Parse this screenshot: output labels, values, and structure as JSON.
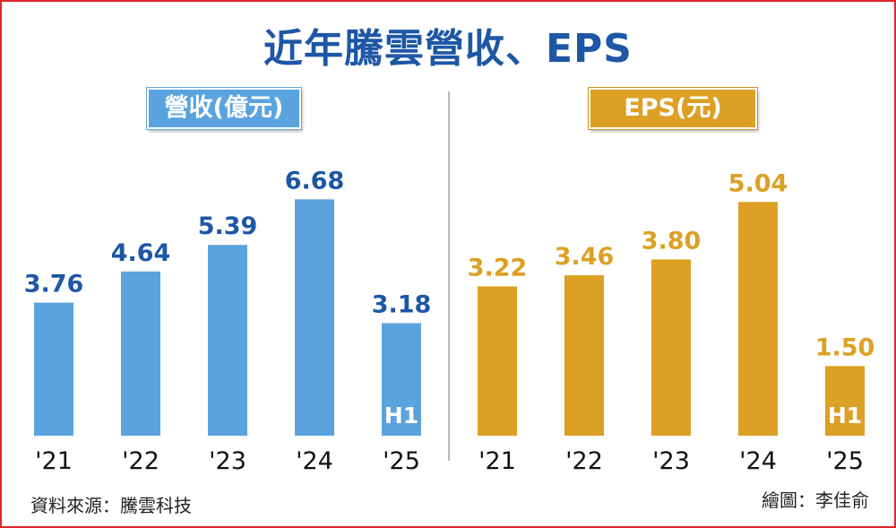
{
  "title": "近年騰雲營收、EPS",
  "source": "資料來源：騰雲科技",
  "credit": "繪圖：李佳俞",
  "colors": {
    "revenue": "#5aa3de",
    "revenue_label": "#1d57a6",
    "eps": "#dca024",
    "eps_label": "#dca024",
    "title": "#1d57a6",
    "frame": "#e0272d"
  },
  "chart_data": [
    {
      "type": "bar",
      "title": "營收(億元)",
      "categories": [
        "'21",
        "'22",
        "'23",
        "'24",
        "'25"
      ],
      "values": [
        3.76,
        4.64,
        5.39,
        6.68,
        3.18
      ],
      "value_labels": [
        "3.76",
        "4.64",
        "5.39",
        "6.68",
        "3.18"
      ],
      "bar_notes": [
        "",
        "",
        "",
        "",
        "H1"
      ],
      "ylim": [
        0,
        7.6
      ]
    },
    {
      "type": "bar",
      "title": "EPS(元)",
      "categories": [
        "'21",
        "'22",
        "'23",
        "'24",
        "'25"
      ],
      "values": [
        3.22,
        3.46,
        3.8,
        5.04,
        1.5
      ],
      "value_labels": [
        "3.22",
        "3.46",
        "3.80",
        "5.04",
        "1.50"
      ],
      "bar_notes": [
        "",
        "",
        "",
        "",
        "H1"
      ],
      "ylim": [
        0,
        5.8
      ]
    }
  ]
}
